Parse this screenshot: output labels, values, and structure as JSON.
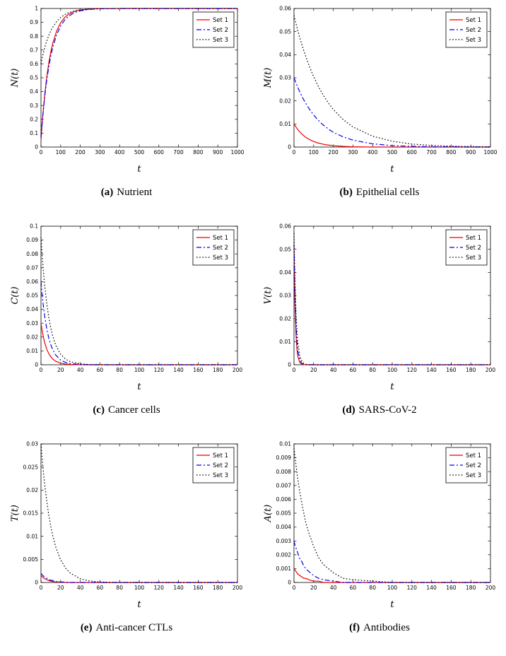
{
  "page": {
    "background": "#ffffff"
  },
  "chart_data": [
    {
      "id": "a",
      "type": "line",
      "caption_label": "(a)",
      "caption_text": "Nutrient",
      "xlabel": "t",
      "ylabel": "N(t)",
      "xlim": [
        0,
        1000
      ],
      "ylim": [
        0,
        1
      ],
      "xticks": [
        0,
        100,
        200,
        300,
        400,
        500,
        600,
        700,
        800,
        900,
        1000
      ],
      "yticks": [
        0,
        0.1,
        0.2,
        0.3,
        0.4,
        0.5,
        0.6,
        0.7,
        0.8,
        0.9,
        1
      ],
      "grid": false,
      "legend_position": "top-right",
      "x": [
        0,
        5,
        10,
        20,
        30,
        40,
        50,
        60,
        80,
        100,
        120,
        140,
        160,
        180,
        200,
        250,
        300,
        400,
        500,
        600,
        700,
        800,
        900,
        1000
      ],
      "series": [
        {
          "name": "Set 1",
          "color": "#ee0000",
          "style": "solid",
          "values": [
            0.05,
            0.15,
            0.239,
            0.391,
            0.512,
            0.609,
            0.687,
            0.75,
            0.839,
            0.897,
            0.934,
            0.958,
            0.973,
            0.983,
            0.989,
            0.996,
            0.999,
            1,
            1,
            1,
            1,
            1,
            1,
            1
          ]
        },
        {
          "name": "Set 2",
          "color": "#0000ee",
          "style": "dashdot",
          "values": [
            0.07,
            0.159,
            0.239,
            0.377,
            0.49,
            0.582,
            0.658,
            0.72,
            0.812,
            0.874,
            0.916,
            0.943,
            0.962,
            0.975,
            0.983,
            0.994,
            0.998,
            1,
            1,
            1,
            1,
            1,
            1,
            1
          ]
        },
        {
          "name": "Set 3",
          "color": "#000000",
          "style": "dotted",
          "values": [
            0.6,
            0.635,
            0.667,
            0.722,
            0.768,
            0.807,
            0.839,
            0.866,
            0.907,
            0.935,
            0.955,
            0.969,
            0.978,
            0.985,
            0.99,
            0.996,
            0.998,
            1,
            1,
            1,
            1,
            1,
            1,
            1
          ]
        }
      ]
    },
    {
      "id": "b",
      "type": "line",
      "caption_label": "(b)",
      "caption_text": "Epithelial cells",
      "xlabel": "t",
      "ylabel": "M(t)",
      "xlim": [
        0,
        1000
      ],
      "ylim": [
        0,
        0.06
      ],
      "xticks": [
        0,
        100,
        200,
        300,
        400,
        500,
        600,
        700,
        800,
        900,
        1000
      ],
      "yticks": [
        0,
        0.01,
        0.02,
        0.03,
        0.04,
        0.05,
        0.06
      ],
      "grid": false,
      "legend_position": "top-right",
      "x": [
        0,
        5,
        10,
        20,
        30,
        40,
        50,
        60,
        80,
        100,
        120,
        140,
        160,
        180,
        200,
        250,
        300,
        400,
        500,
        600,
        700,
        800,
        900,
        1000
      ],
      "series": [
        {
          "name": "Set 1",
          "color": "#ee0000",
          "style": "solid",
          "values": [
            0.01,
            0.0093,
            0.0087,
            0.0075,
            0.0065,
            0.0056,
            0.0049,
            0.0042,
            0.0032,
            0.0024,
            0.0018,
            0.0014,
            0.001,
            0.0008,
            0.0006,
            0.0003,
            0.0001,
            0,
            0,
            0,
            0,
            0,
            0,
            0
          ]
        },
        {
          "name": "Set 2",
          "color": "#0000ee",
          "style": "dashdot",
          "values": [
            0.03,
            0.0289,
            0.0278,
            0.0257,
            0.0238,
            0.022,
            0.0204,
            0.0189,
            0.0162,
            0.0139,
            0.0119,
            0.0102,
            0.0088,
            0.0075,
            0.0064,
            0.0044,
            0.003,
            0.0014,
            0.0006,
            0.0003,
            0.0001,
            0.0001,
            0,
            0
          ]
        },
        {
          "name": "Set 3",
          "color": "#000000",
          "style": "dotted",
          "values": [
            0.057,
            0.0552,
            0.0535,
            0.0503,
            0.0472,
            0.0444,
            0.0417,
            0.0392,
            0.0346,
            0.0305,
            0.0269,
            0.0238,
            0.021,
            0.0185,
            0.0163,
            0.0119,
            0.0087,
            0.0047,
            0.0025,
            0.0013,
            0.0007,
            0.0004,
            0.0002,
            0.0001
          ]
        }
      ]
    },
    {
      "id": "c",
      "type": "line",
      "caption_label": "(c)",
      "caption_text": "Cancer cells",
      "xlabel": "t",
      "ylabel": "C(t)",
      "xlim": [
        0,
        200
      ],
      "ylim": [
        0,
        0.1
      ],
      "xticks": [
        0,
        20,
        40,
        60,
        80,
        100,
        120,
        140,
        160,
        180,
        200
      ],
      "yticks": [
        0,
        0.01,
        0.02,
        0.03,
        0.04,
        0.05,
        0.06,
        0.07,
        0.08,
        0.09,
        0.1
      ],
      "grid": false,
      "legend_position": "top-right",
      "x": [
        0,
        1,
        2,
        3,
        4,
        6,
        8,
        10,
        12,
        15,
        20,
        25,
        30,
        40,
        50,
        60,
        80,
        100,
        120,
        140,
        160,
        180,
        200
      ],
      "series": [
        {
          "name": "Set 1",
          "color": "#ee0000",
          "style": "solid",
          "values": [
            0.03,
            0.0254,
            0.0215,
            0.0182,
            0.0154,
            0.011,
            0.0079,
            0.0057,
            0.0041,
            0.0025,
            0.0011,
            0.0005,
            0.0002,
            0,
            0,
            0,
            0,
            0,
            0,
            0,
            0,
            0,
            0
          ]
        },
        {
          "name": "Set 2",
          "color": "#0000ee",
          "style": "dashdot",
          "values": [
            0.06,
            0.052,
            0.0451,
            0.0391,
            0.0339,
            0.0255,
            0.0191,
            0.0144,
            0.0108,
            0.007,
            0.0034,
            0.0017,
            0.0008,
            0.0002,
            0,
            0,
            0,
            0,
            0,
            0,
            0,
            0,
            0
          ]
        },
        {
          "name": "Set 3",
          "color": "#000000",
          "style": "dotted",
          "values": [
            0.092,
            0.0812,
            0.0716,
            0.0632,
            0.0558,
            0.0434,
            0.0338,
            0.0264,
            0.0205,
            0.0141,
            0.0075,
            0.004,
            0.0022,
            0.0006,
            0.0002,
            0.0001,
            0,
            0,
            0,
            0,
            0,
            0,
            0
          ]
        }
      ]
    },
    {
      "id": "d",
      "type": "line",
      "caption_label": "(d)",
      "caption_text": "SARS-CoV-2",
      "xlabel": "t",
      "ylabel": "V(t)",
      "xlim": [
        0,
        200
      ],
      "ylim": [
        0,
        0.06
      ],
      "xticks": [
        0,
        20,
        40,
        60,
        80,
        100,
        120,
        140,
        160,
        180,
        200
      ],
      "yticks": [
        0,
        0.01,
        0.02,
        0.03,
        0.04,
        0.05,
        0.06
      ],
      "grid": false,
      "legend_position": "top-right",
      "x": [
        0,
        1,
        2,
        3,
        4,
        6,
        8,
        10,
        12,
        15,
        20,
        25,
        30,
        40,
        50,
        60,
        80,
        100,
        120,
        140,
        160,
        180,
        200
      ],
      "series": [
        {
          "name": "Set 1",
          "color": "#ee0000",
          "style": "solid",
          "values": [
            0.05,
            0.0257,
            0.0132,
            0.0068,
            0.0035,
            0.0009,
            0.0002,
            0.0001,
            0,
            0,
            0,
            0,
            0,
            0,
            0,
            0,
            0,
            0,
            0,
            0,
            0,
            0,
            0
          ]
        },
        {
          "name": "Set 2",
          "color": "#0000ee",
          "style": "dashdot",
          "values": [
            0.052,
            0.0298,
            0.0171,
            0.0098,
            0.0056,
            0.0019,
            0.0006,
            0.0002,
            0.0001,
            0,
            0,
            0,
            0,
            0,
            0,
            0,
            0,
            0,
            0,
            0,
            0,
            0,
            0
          ]
        },
        {
          "name": "Set 3",
          "color": "#000000",
          "style": "dotted",
          "values": [
            0.057,
            0.0362,
            0.023,
            0.0146,
            0.0093,
            0.0037,
            0.0015,
            0.0006,
            0.0002,
            0.0001,
            0,
            0,
            0,
            0,
            0,
            0,
            0,
            0,
            0,
            0,
            0,
            0,
            0
          ]
        }
      ]
    },
    {
      "id": "e",
      "type": "line",
      "caption_label": "(e)",
      "caption_text": "Anti-cancer CTLs",
      "xlabel": "t",
      "ylabel": "T(t)",
      "xlim": [
        0,
        200
      ],
      "ylim": [
        0,
        0.03
      ],
      "xticks": [
        0,
        20,
        40,
        60,
        80,
        100,
        120,
        140,
        160,
        180,
        200
      ],
      "yticks": [
        0,
        0.005,
        0.01,
        0.015,
        0.02,
        0.025,
        0.03
      ],
      "grid": false,
      "legend_position": "top-right",
      "x": [
        0,
        1,
        2,
        3,
        4,
        6,
        8,
        10,
        12,
        15,
        20,
        25,
        30,
        40,
        50,
        60,
        80,
        100,
        120,
        140,
        160,
        180,
        200
      ],
      "series": [
        {
          "name": "Set 1",
          "color": "#ee0000",
          "style": "solid",
          "values": [
            0.0015,
            0.0013,
            0.0011,
            0.0009,
            0.0008,
            0.0006,
            0.0004,
            0.0003,
            0.0002,
            0.0001,
            0.0001,
            0,
            0,
            0,
            0,
            0,
            0,
            0,
            0,
            0,
            0,
            0,
            0
          ]
        },
        {
          "name": "Set 2",
          "color": "#0000ee",
          "style": "dashdot",
          "values": [
            0.002,
            0.0017,
            0.0015,
            0.0013,
            0.0011,
            0.0009,
            0.0006,
            0.0005,
            0.0004,
            0.0002,
            0.0001,
            0.0001,
            0,
            0,
            0,
            0,
            0,
            0,
            0,
            0,
            0,
            0,
            0
          ]
        },
        {
          "name": "Set 3",
          "color": "#000000",
          "style": "dotted",
          "values": [
            0.03,
            0.0274,
            0.025,
            0.0228,
            0.0208,
            0.0174,
            0.0145,
            0.0121,
            0.0101,
            0.0077,
            0.0049,
            0.0031,
            0.002,
            0.0008,
            0.0003,
            0.0001,
            0,
            0,
            0,
            0,
            0,
            0,
            0
          ]
        }
      ]
    },
    {
      "id": "f",
      "type": "line",
      "caption_label": "(f)",
      "caption_text": "Antibodies",
      "xlabel": "t",
      "ylabel": "A(t)",
      "xlim": [
        0,
        200
      ],
      "ylim": [
        0,
        0.01
      ],
      "xticks": [
        0,
        20,
        40,
        60,
        80,
        100,
        120,
        140,
        160,
        180,
        200
      ],
      "yticks": [
        0,
        0.001,
        0.002,
        0.003,
        0.004,
        0.005,
        0.006,
        0.007,
        0.008,
        0.009,
        0.01
      ],
      "grid": false,
      "legend_position": "top-right",
      "x": [
        0,
        1,
        2,
        3,
        4,
        6,
        8,
        10,
        12,
        15,
        20,
        25,
        30,
        40,
        50,
        60,
        80,
        100,
        120,
        140,
        160,
        180,
        200
      ],
      "series": [
        {
          "name": "Set 1",
          "color": "#ee0000",
          "style": "solid",
          "values": [
            0.001,
            0.0009,
            0.0008,
            0.0007,
            0.0006,
            0.0005,
            0.0004,
            0.0003,
            0.0003,
            0.0002,
            0.0001,
            0.0001,
            0,
            0,
            0,
            0,
            0,
            0,
            0,
            0,
            0,
            0,
            0
          ]
        },
        {
          "name": "Set 2",
          "color": "#0000ee",
          "style": "dashdot",
          "values": [
            0.003,
            0.0027,
            0.0025,
            0.0023,
            0.0021,
            0.0017,
            0.0015,
            0.0012,
            0.001,
            0.0008,
            0.0005,
            0.0003,
            0.0002,
            0.0001,
            0,
            0,
            0,
            0,
            0,
            0,
            0,
            0,
            0
          ]
        },
        {
          "name": "Set 3",
          "color": "#000000",
          "style": "dotted",
          "values": [
            0.0097,
            0.0091,
            0.0085,
            0.0079,
            0.0074,
            0.0065,
            0.0057,
            0.005,
            0.0043,
            0.0036,
            0.0026,
            0.0018,
            0.0013,
            0.0007,
            0.0003,
            0.0002,
            0.0001,
            0,
            0,
            0,
            0,
            0,
            0
          ]
        }
      ]
    }
  ]
}
